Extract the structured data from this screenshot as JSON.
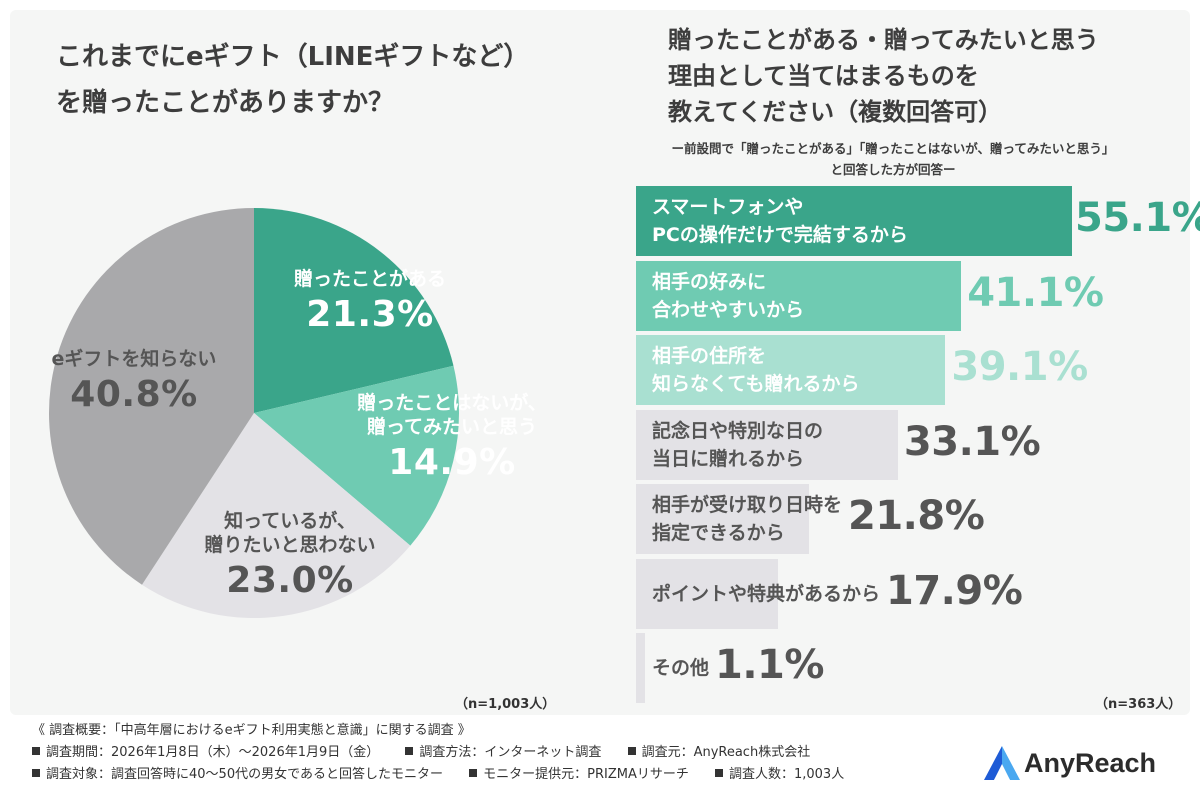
{
  "left_title": [
    "これまでにeギフト（LINEギフトなど）",
    "を贈ったことがありますか？"
  ],
  "right_title": [
    "贈ったことがある・贈ってみたいと思う",
    "理由として当てはまるものを",
    "教えてください（複数回答可）"
  ],
  "right_note": [
    "ー前設問で「贈ったことがある」「贈ったことはないが、贈ってみたいと思う」",
    "と回答した方が回答ー"
  ],
  "left_n": "（n=1,003人）",
  "right_n": "（n=363人）",
  "chart_data": [
    {
      "type": "pie",
      "title": "これまでにeギフト（LINEギフトなど）を贈ったことがありますか？",
      "start_angle_deg": 0,
      "direction": "clockwise",
      "slices": [
        {
          "label": "贈ったことがある",
          "value": 21.3,
          "value_label": "21.3%",
          "color": "#3aa58a",
          "text_color": "#ffffff"
        },
        {
          "label": "贈ったことはないが、贈ってみたいと思う",
          "label_lines": [
            "贈ったことはないが、",
            "贈ってみたいと思う"
          ],
          "value": 14.9,
          "value_label": "14.9%",
          "color": "#6fcbb2",
          "text_color": "#ffffff"
        },
        {
          "label": "知っているが、贈りたいと思わない",
          "label_lines": [
            "知っているが、",
            "贈りたいと思わない"
          ],
          "value": 23.0,
          "value_label": "23.0%",
          "color": "#e3e2e6",
          "text_color": "#555555"
        },
        {
          "label": "eギフトを知らない",
          "value": 40.8,
          "value_label": "40.8%",
          "color": "#a9a9ab",
          "text_color": "#555555"
        }
      ]
    },
    {
      "type": "bar",
      "orientation": "horizontal",
      "title": "贈ったことがある・贈ってみたいと思う理由として当てはまるものを教えてください（複数回答可）",
      "xlim": [
        0,
        55.1
      ],
      "bars": [
        {
          "label_lines": [
            "スマートフォンや",
            "PCの操作だけで完結するから"
          ],
          "value": 55.1,
          "value_label": "55.1%",
          "color": "#3aa58a",
          "text_color": "#ffffff",
          "value_color": "#3aa58a"
        },
        {
          "label_lines": [
            "相手の好みに",
            "合わせやすいから"
          ],
          "value": 41.1,
          "value_label": "41.1%",
          "color": "#6fcbb2",
          "text_color": "#ffffff",
          "value_color": "#6fcbb2"
        },
        {
          "label_lines": [
            "相手の住所を",
            "知らなくても贈れるから"
          ],
          "value": 39.1,
          "value_label": "39.1%",
          "color": "#a9e0d1",
          "text_color": "#ffffff",
          "value_color": "#a9e0d1"
        },
        {
          "label_lines": [
            "記念日や特別な日の",
            "当日に贈れるから"
          ],
          "value": 33.1,
          "value_label": "33.1%",
          "color": "#e3e2e6",
          "text_color": "#555555",
          "value_color": "#555555"
        },
        {
          "label_lines": [
            "相手が受け取り日時を",
            "指定できるから"
          ],
          "value": 21.8,
          "value_label": "21.8%",
          "color": "#e3e2e6",
          "text_color": "#555555",
          "value_color": "#555555"
        },
        {
          "label_lines": [
            "ポイントや特典があるから"
          ],
          "value": 17.9,
          "value_label": "17.9%",
          "color": "#e3e2e6",
          "text_color": "#555555",
          "value_color": "#555555"
        },
        {
          "label_lines": [
            "その他"
          ],
          "value": 1.1,
          "value_label": "1.1%",
          "color": "#e3e2e6",
          "text_color": "#555555",
          "value_color": "#555555"
        }
      ]
    }
  ],
  "footer": {
    "heading": "《 調査概要：「中高年層におけるeギフト利用実態と意識」に関する調査 》",
    "row1": [
      "調査期間：2026年1月8日（木）～2026年1月9日（金）",
      "調査方法：インターネット調査",
      "調査元：AnyReach株式会社"
    ],
    "row2": [
      "調査対象：調査回答時に40〜50代の男女であると回答したモニター",
      "モニター提供元：PRIZMAリサーチ",
      "調査人数：1,003人"
    ]
  },
  "logo": {
    "text": "AnyReach",
    "colors": [
      "#1e5bd6",
      "#4aa8f0"
    ]
  }
}
